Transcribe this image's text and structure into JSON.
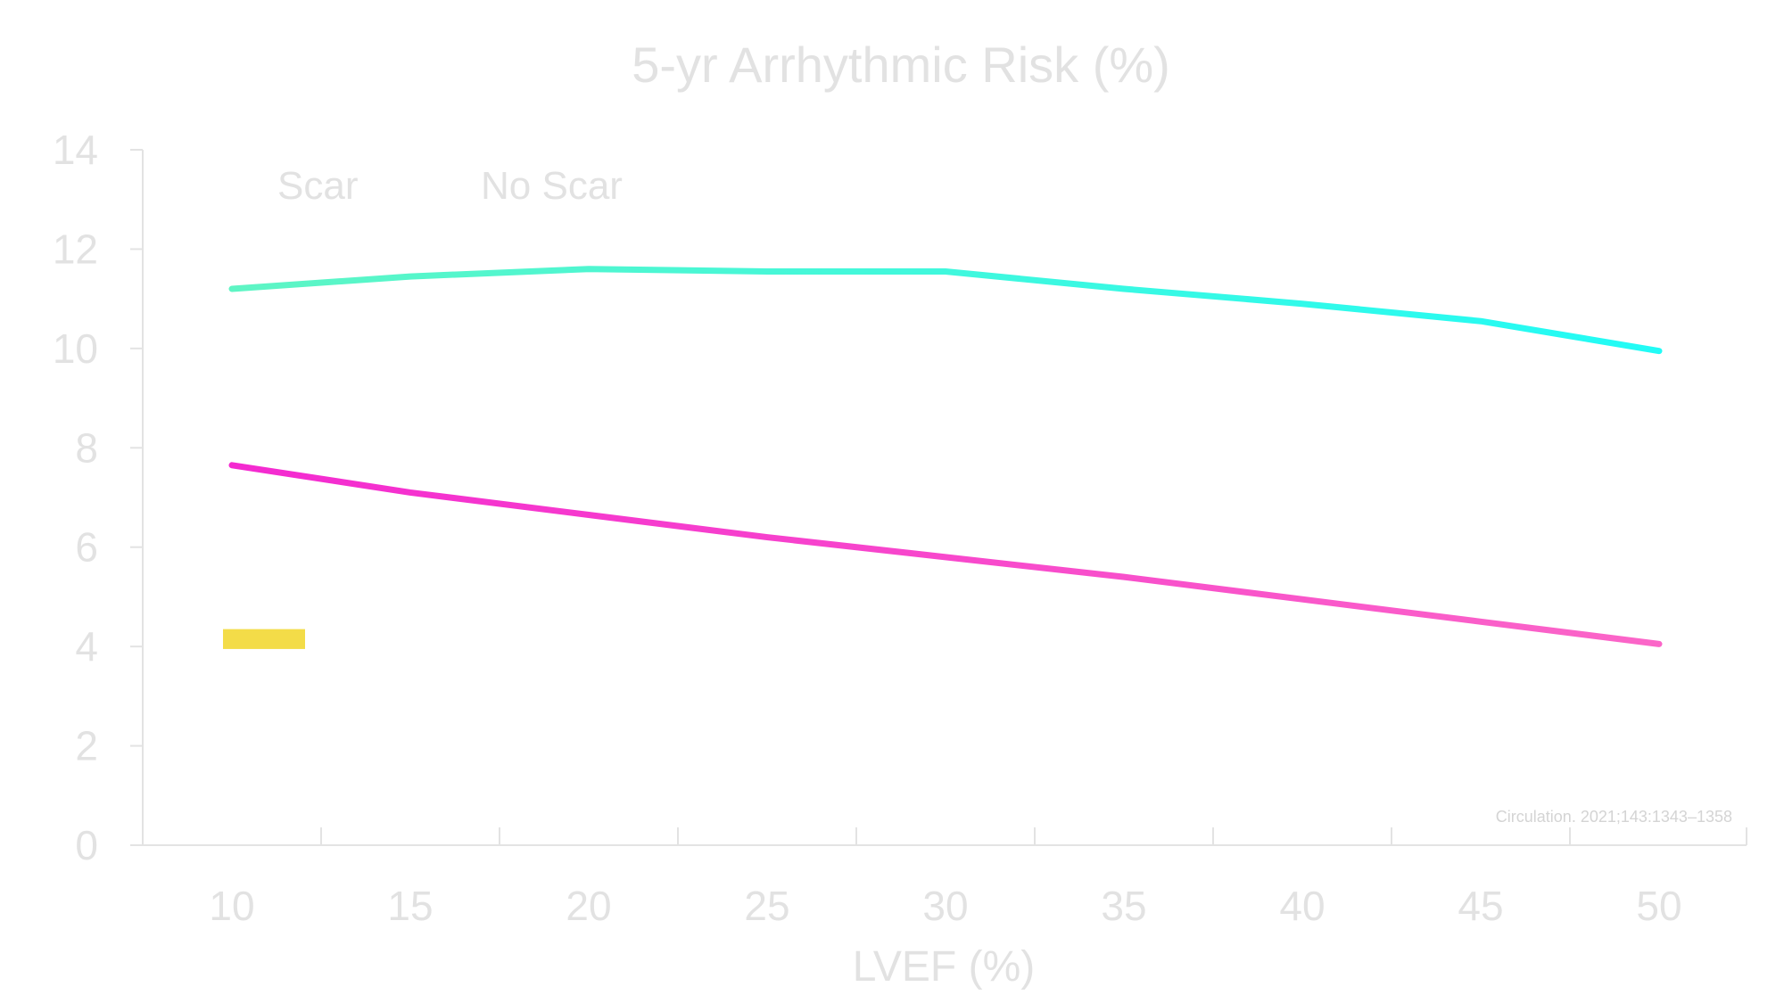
{
  "chart_data": {
    "type": "line",
    "title": "5-yr Arrhythmic Risk (%)",
    "xlabel": "LVEF (%)",
    "ylabel": "",
    "categories": [
      10,
      15,
      20,
      25,
      30,
      35,
      40,
      45,
      50
    ],
    "y_ticks": [
      0,
      2,
      4,
      6,
      8,
      10,
      12,
      14
    ],
    "ylim": [
      0,
      14
    ],
    "grid": false,
    "legend_position": "top-left",
    "series": [
      {
        "name": "Scar",
        "values": [
          11.2,
          11.45,
          11.6,
          11.55,
          11.55,
          11.2,
          10.9,
          10.55,
          9.95
        ],
        "color_start": "#5ef5c4",
        "color_end": "#22fbf6"
      },
      {
        "name": "No Scar",
        "values": [
          7.65,
          7.1,
          6.65,
          6.2,
          5.8,
          5.4,
          4.95,
          4.5,
          4.05
        ],
        "color_start": "#f42ad0",
        "color_end": "#fb66c8"
      }
    ],
    "annotation": {
      "text": "Circulation. 2021;143:1343–1358",
      "position": "bottom-right"
    },
    "marker": {
      "color": "#f3dc48",
      "y_from": 3.95,
      "y_to": 4.35
    }
  }
}
